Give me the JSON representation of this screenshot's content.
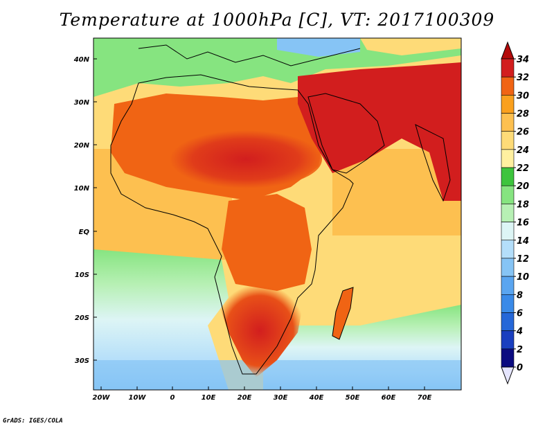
{
  "title": "Temperature at 1000hPa [C], VT: 2017100309",
  "credit": "GrADS: IGES/COLA",
  "map": {
    "variable": "Temperature at 1000hPa",
    "units": "C",
    "valid_time": "2017100309",
    "lon_range": [
      -22,
      80
    ],
    "lat_range": [
      -37,
      46
    ],
    "lon_ticks": [
      "20W",
      "10W",
      "0",
      "10E",
      "20E",
      "30E",
      "40E",
      "50E",
      "60E",
      "70E"
    ],
    "lat_ticks": [
      "40N",
      "30N",
      "20N",
      "10N",
      "EQ",
      "10S",
      "20S",
      "30S"
    ]
  },
  "colorbar": {
    "labels": [
      "0",
      "2",
      "4",
      "6",
      "8",
      "10",
      "12",
      "14",
      "16",
      "18",
      "20",
      "22",
      "24",
      "26",
      "28",
      "30",
      "32",
      "34"
    ],
    "colors": [
      "#e6e6ff",
      "#0b0b80",
      "#1a3fbf",
      "#2567d8",
      "#3a8ae8",
      "#5aa5f0",
      "#86c4f5",
      "#b4defa",
      "#ddf5f5",
      "#b7f0b4",
      "#86e480",
      "#3dc43d",
      "#fff0a0",
      "#fedb78",
      "#fdc050",
      "#faa01e",
      "#f06414",
      "#d21e1e",
      "#b40a0a"
    ]
  }
}
